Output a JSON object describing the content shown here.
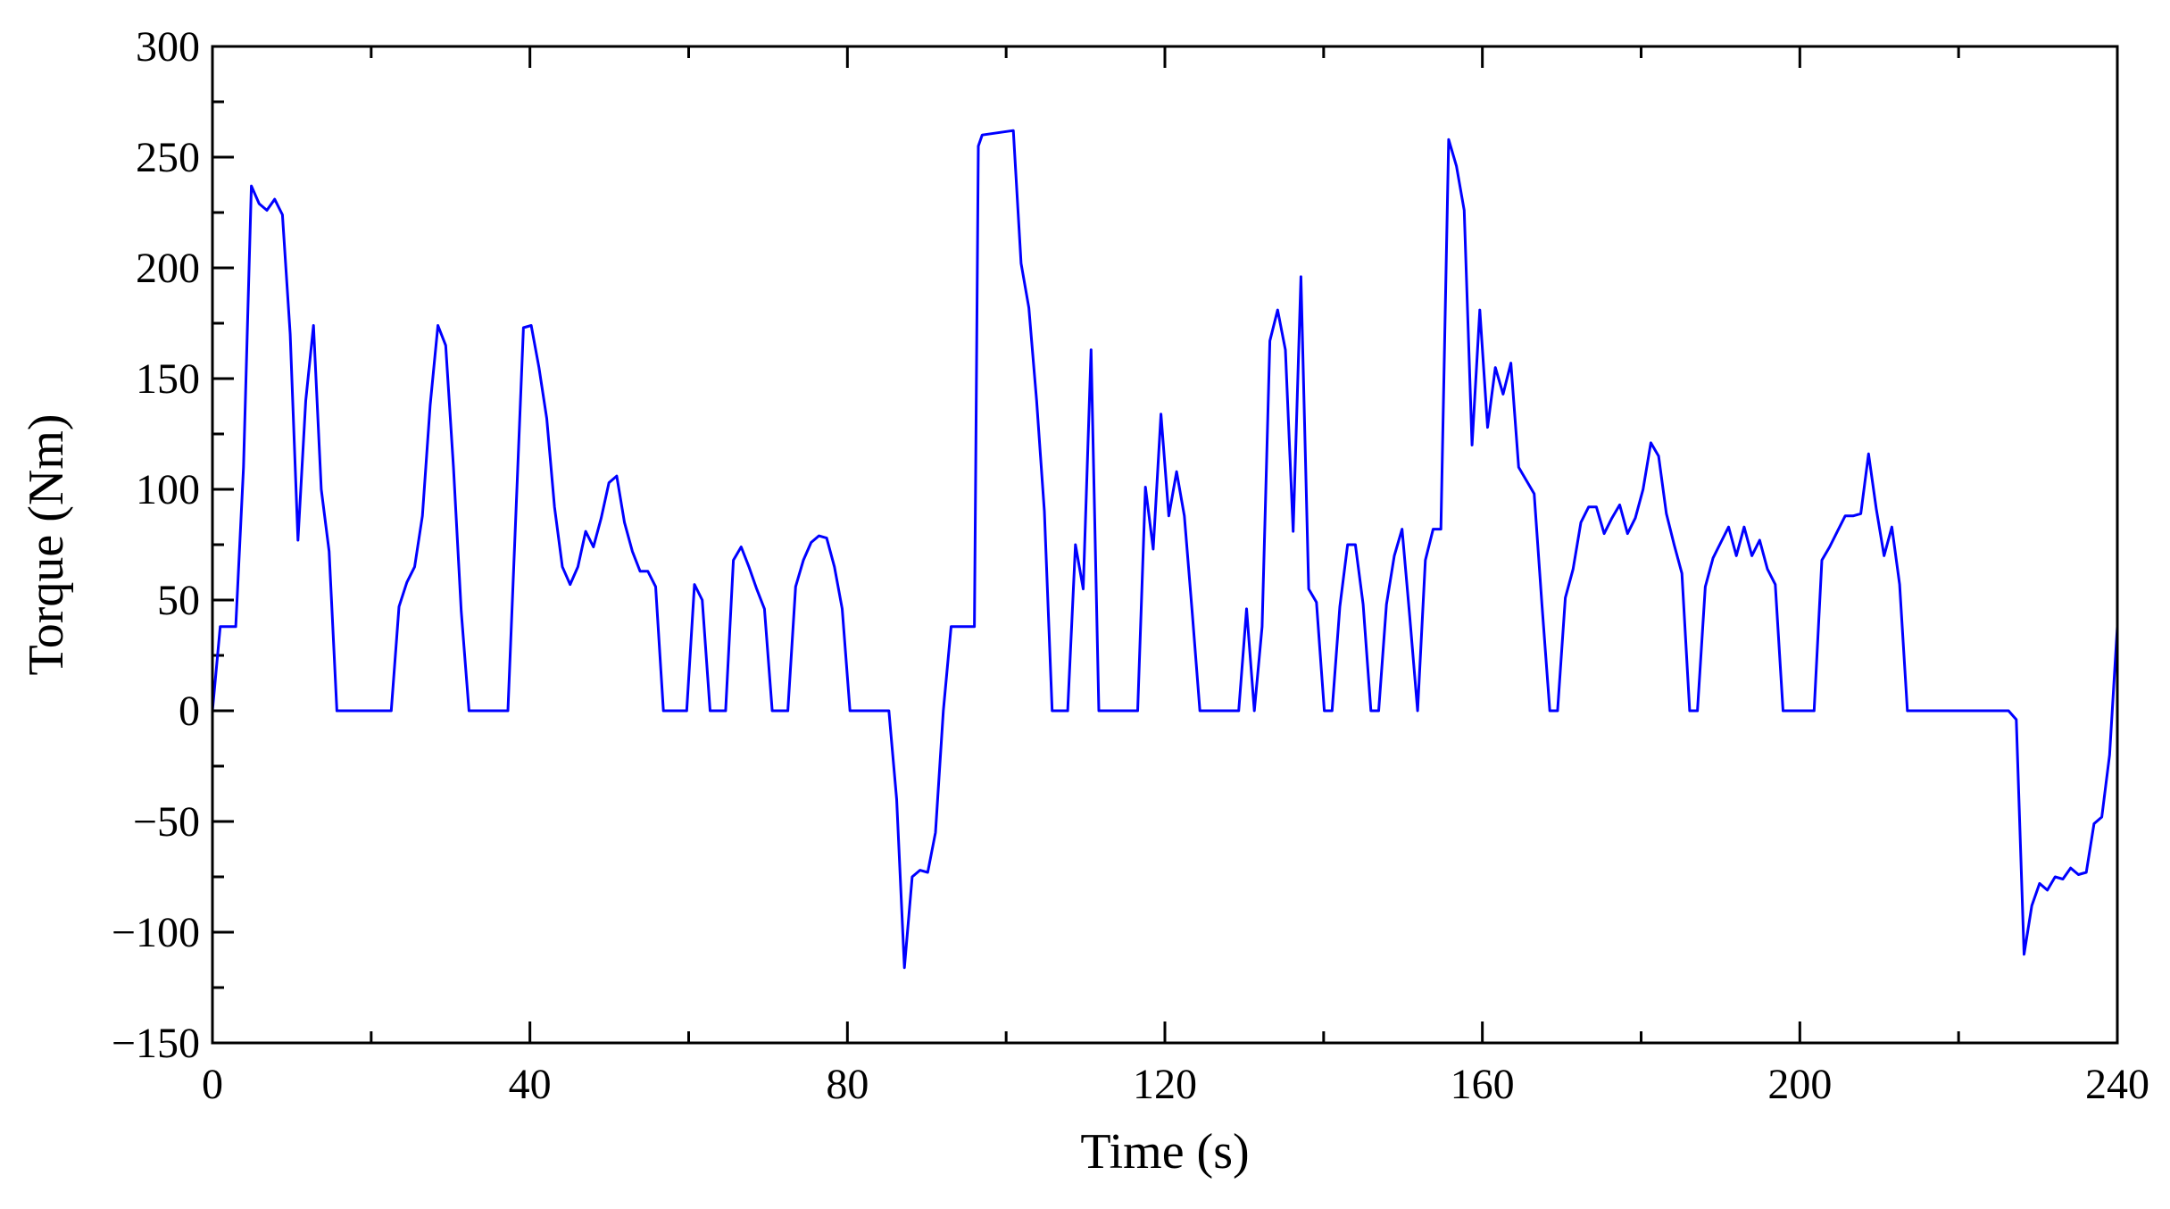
{
  "chart_data": {
    "type": "line",
    "title": "",
    "xlabel": "Time (s)",
    "ylabel": "Torque (Nm)",
    "xlim": [
      0,
      240
    ],
    "ylim": [
      -150,
      300
    ],
    "x_ticks": [
      0,
      40,
      80,
      120,
      160,
      200,
      240
    ],
    "y_ticks": [
      -150,
      -100,
      -50,
      0,
      50,
      100,
      150,
      200,
      250,
      300
    ],
    "x_tick_labels": [
      "0",
      "40",
      "80",
      "120",
      "160",
      "200",
      "240"
    ],
    "y_tick_labels": [
      "−150",
      "−100",
      "−50",
      "0",
      "50",
      "100",
      "150",
      "200",
      "250",
      "300"
    ],
    "grid": false,
    "series": [
      {
        "color": "#0000ff",
        "points": [
          [
            0,
            0
          ],
          [
            1,
            38
          ],
          [
            3,
            38
          ],
          [
            4,
            110
          ],
          [
            5,
            237
          ],
          [
            6,
            229
          ],
          [
            7,
            226
          ],
          [
            8,
            231
          ],
          [
            9,
            224
          ],
          [
            10,
            170
          ],
          [
            11,
            77
          ],
          [
            12,
            140
          ],
          [
            13,
            174
          ],
          [
            14,
            100
          ],
          [
            15,
            72
          ],
          [
            16,
            0
          ],
          [
            23,
            0
          ],
          [
            24,
            47
          ],
          [
            25,
            58
          ],
          [
            26,
            65
          ],
          [
            27,
            88
          ],
          [
            28,
            138
          ],
          [
            29,
            174
          ],
          [
            30,
            165
          ],
          [
            31,
            110
          ],
          [
            32,
            45
          ],
          [
            33,
            0
          ],
          [
            38,
            0
          ],
          [
            40,
            173
          ],
          [
            41,
            174
          ],
          [
            42,
            155
          ],
          [
            43,
            132
          ],
          [
            44,
            92
          ],
          [
            45,
            65
          ],
          [
            46,
            57
          ],
          [
            47,
            65
          ],
          [
            48,
            81
          ],
          [
            49,
            74
          ],
          [
            50,
            87
          ],
          [
            51,
            103
          ],
          [
            52,
            106
          ],
          [
            53,
            85
          ],
          [
            54,
            72
          ],
          [
            55,
            63
          ],
          [
            56,
            63
          ],
          [
            57,
            56
          ],
          [
            58,
            0
          ],
          [
            61,
            0
          ],
          [
            62,
            57
          ],
          [
            63,
            50
          ],
          [
            64,
            0
          ],
          [
            66,
            0
          ],
          [
            67,
            68
          ],
          [
            68,
            74
          ],
          [
            69,
            65
          ],
          [
            70,
            55
          ],
          [
            71,
            46
          ],
          [
            72,
            0
          ],
          [
            74,
            0
          ],
          [
            75,
            56
          ],
          [
            76,
            68
          ],
          [
            77,
            76
          ],
          [
            78,
            79
          ],
          [
            79,
            78
          ],
          [
            80,
            65
          ],
          [
            81,
            46
          ],
          [
            82,
            0
          ],
          [
            87,
            0
          ],
          [
            88,
            -40
          ],
          [
            89,
            -116
          ],
          [
            90,
            -75
          ],
          [
            91,
            -72
          ],
          [
            92,
            -73
          ],
          [
            93,
            -55
          ],
          [
            94,
            0
          ],
          [
            95,
            38
          ],
          [
            98,
            38
          ],
          [
            98.5,
            255
          ],
          [
            99,
            260
          ],
          [
            101,
            261
          ],
          [
            103,
            262
          ],
          [
            104,
            202
          ],
          [
            105,
            182
          ],
          [
            106,
            140
          ],
          [
            107,
            90
          ],
          [
            108,
            0
          ],
          [
            110,
            0
          ],
          [
            111,
            75
          ],
          [
            112,
            55
          ],
          [
            113,
            163
          ],
          [
            114,
            0
          ],
          [
            119,
            0
          ],
          [
            120,
            101
          ],
          [
            121,
            73
          ],
          [
            122,
            134
          ],
          [
            123,
            88
          ],
          [
            124,
            108
          ],
          [
            125,
            88
          ],
          [
            126,
            45
          ],
          [
            127,
            0
          ],
          [
            132,
            0
          ],
          [
            133,
            46
          ],
          [
            134,
            0
          ],
          [
            135,
            38
          ],
          [
            136,
            167
          ],
          [
            137,
            181
          ],
          [
            138,
            163
          ],
          [
            139,
            81
          ],
          [
            140,
            196
          ],
          [
            141,
            55
          ],
          [
            142,
            49
          ],
          [
            143,
            0
          ],
          [
            144,
            0
          ],
          [
            145,
            47
          ],
          [
            146,
            75
          ],
          [
            147,
            75
          ],
          [
            148,
            48
          ],
          [
            149,
            0
          ],
          [
            150,
            0
          ],
          [
            151,
            48
          ],
          [
            152,
            70
          ],
          [
            153,
            82
          ],
          [
            154,
            42
          ],
          [
            155,
            0
          ],
          [
            156,
            68
          ],
          [
            157,
            82
          ],
          [
            158,
            82
          ],
          [
            159,
            258
          ],
          [
            160,
            246
          ],
          [
            161,
            226
          ],
          [
            162,
            120
          ],
          [
            163,
            181
          ],
          [
            164,
            128
          ],
          [
            165,
            155
          ],
          [
            166,
            143
          ],
          [
            167,
            157
          ],
          [
            168,
            110
          ],
          [
            169,
            104
          ],
          [
            170,
            98
          ],
          [
            171,
            48
          ],
          [
            172,
            0
          ],
          [
            173,
            0
          ],
          [
            174,
            51
          ],
          [
            175,
            64
          ],
          [
            176,
            85
          ],
          [
            177,
            92
          ],
          [
            178,
            92
          ],
          [
            179,
            80
          ],
          [
            180,
            87
          ],
          [
            181,
            93
          ],
          [
            182,
            80
          ],
          [
            183,
            87
          ],
          [
            184,
            100
          ],
          [
            185,
            121
          ],
          [
            186,
            115
          ],
          [
            187,
            89
          ],
          [
            188,
            75
          ],
          [
            189,
            62
          ],
          [
            190,
            0
          ],
          [
            191,
            0
          ],
          [
            192,
            56
          ],
          [
            193,
            69
          ],
          [
            194,
            76
          ],
          [
            195,
            83
          ],
          [
            196,
            70
          ],
          [
            197,
            83
          ],
          [
            198,
            70
          ],
          [
            199,
            77
          ],
          [
            200,
            64
          ],
          [
            201,
            57
          ],
          [
            202,
            0
          ],
          [
            206,
            0
          ],
          [
            207,
            68
          ],
          [
            208,
            74
          ],
          [
            209,
            81
          ],
          [
            210,
            88
          ],
          [
            211,
            88
          ],
          [
            212,
            89
          ],
          [
            213,
            116
          ],
          [
            214,
            91
          ],
          [
            215,
            70
          ],
          [
            216,
            83
          ],
          [
            217,
            57
          ],
          [
            218,
            0
          ],
          [
            231,
            0
          ],
          [
            232,
            -4
          ],
          [
            233,
            -110
          ],
          [
            234,
            -88
          ],
          [
            235,
            -78
          ],
          [
            236,
            -81
          ],
          [
            237,
            -75
          ],
          [
            238,
            -76
          ],
          [
            239,
            -71
          ],
          [
            240,
            -74
          ],
          [
            241,
            -73
          ],
          [
            242,
            -51
          ],
          [
            243,
            -48
          ],
          [
            244,
            -20
          ],
          [
            245,
            38
          ],
          [
            240,
            0
          ]
        ]
      }
    ]
  }
}
